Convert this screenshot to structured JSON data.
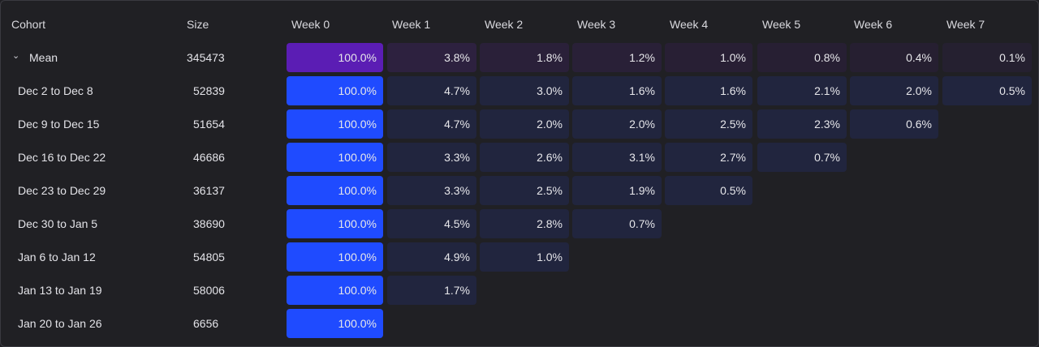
{
  "table": {
    "headers": {
      "cohort": "Cohort",
      "size": "Size",
      "weeks": [
        "Week 0",
        "Week 1",
        "Week 2",
        "Week 3",
        "Week 4",
        "Week 5",
        "Week 6",
        "Week 7"
      ]
    },
    "mean": {
      "label": "Mean",
      "size": "345473",
      "values": [
        "100.0%",
        "3.8%",
        "1.8%",
        "1.2%",
        "1.0%",
        "0.8%",
        "0.4%",
        "0.1%"
      ],
      "colors": [
        "#5b1db4",
        "#2d213f",
        "#2a2039",
        "#292037",
        "#281f34",
        "#271f33",
        "#261f31",
        "#252030"
      ]
    },
    "rows": [
      {
        "label": "Dec 2 to Dec 8",
        "size": "52839",
        "values": [
          "100.0%",
          "4.7%",
          "3.0%",
          "1.6%",
          "1.6%",
          "2.1%",
          "2.0%",
          "0.5%"
        ]
      },
      {
        "label": "Dec 9 to Dec 15",
        "size": "51654",
        "values": [
          "100.0%",
          "4.7%",
          "2.0%",
          "2.0%",
          "2.5%",
          "2.3%",
          "0.6%"
        ]
      },
      {
        "label": "Dec 16 to Dec 22",
        "size": "46686",
        "values": [
          "100.0%",
          "3.3%",
          "2.6%",
          "3.1%",
          "2.7%",
          "0.7%"
        ]
      },
      {
        "label": "Dec 23 to Dec 29",
        "size": "36137",
        "values": [
          "100.0%",
          "3.3%",
          "2.5%",
          "1.9%",
          "0.5%"
        ]
      },
      {
        "label": "Dec 30 to Jan 5",
        "size": "38690",
        "values": [
          "100.0%",
          "4.5%",
          "2.8%",
          "0.7%"
        ]
      },
      {
        "label": "Jan 6 to Jan 12",
        "size": "54805",
        "values": [
          "100.0%",
          "4.9%",
          "1.0%"
        ]
      },
      {
        "label": "Jan 13 to Jan 19",
        "size": "58006",
        "values": [
          "100.0%",
          "1.7%"
        ]
      },
      {
        "label": "Jan 20 to Jan 26",
        "size": "6656",
        "values": [
          "100.0%"
        ]
      }
    ],
    "colors": {
      "week0": "#1f4bff",
      "dark": "#21253e"
    }
  }
}
